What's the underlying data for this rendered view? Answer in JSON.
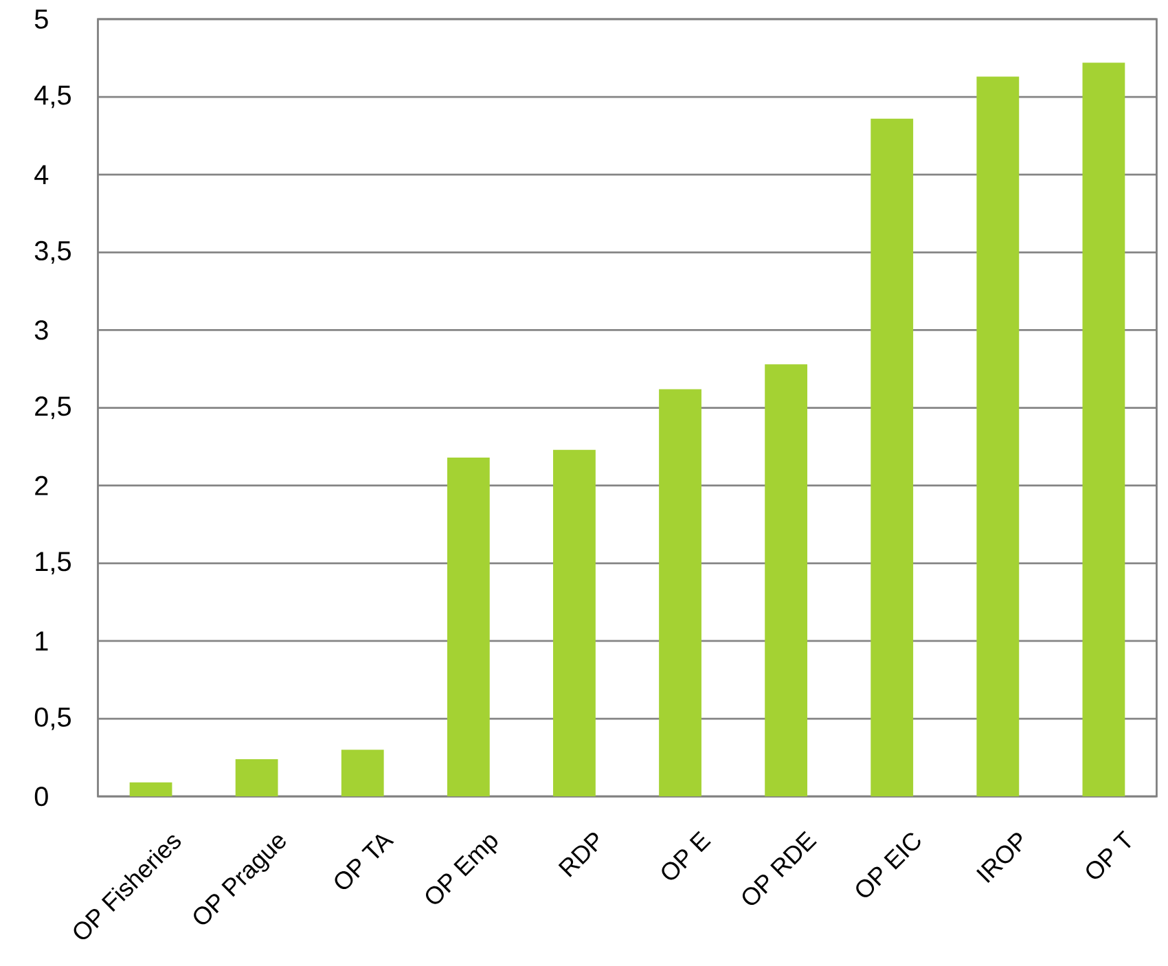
{
  "chart_data": {
    "type": "bar",
    "categories": [
      "OP Fisheries",
      "OP Prague",
      "OP TA",
      "OP Emp",
      "RDP",
      "OP E",
      "OP RDE",
      "OP EIC",
      "IROP",
      "OP T"
    ],
    "values": [
      0.09,
      0.24,
      0.3,
      2.18,
      2.23,
      2.62,
      2.78,
      4.36,
      4.63,
      4.72
    ],
    "color": "#a4d233",
    "ylim": [
      0,
      5
    ],
    "yticks": [
      0,
      {
        "value": 0.5,
        "label": "0,5"
      },
      1,
      {
        "value": 1.5,
        "label": "1,5"
      },
      2,
      {
        "value": 2.5,
        "label": "2,5"
      },
      3,
      {
        "value": 3.5,
        "label": "3,5"
      },
      4,
      {
        "value": 4.5,
        "label": "4,5"
      },
      5
    ],
    "grid": "y"
  }
}
